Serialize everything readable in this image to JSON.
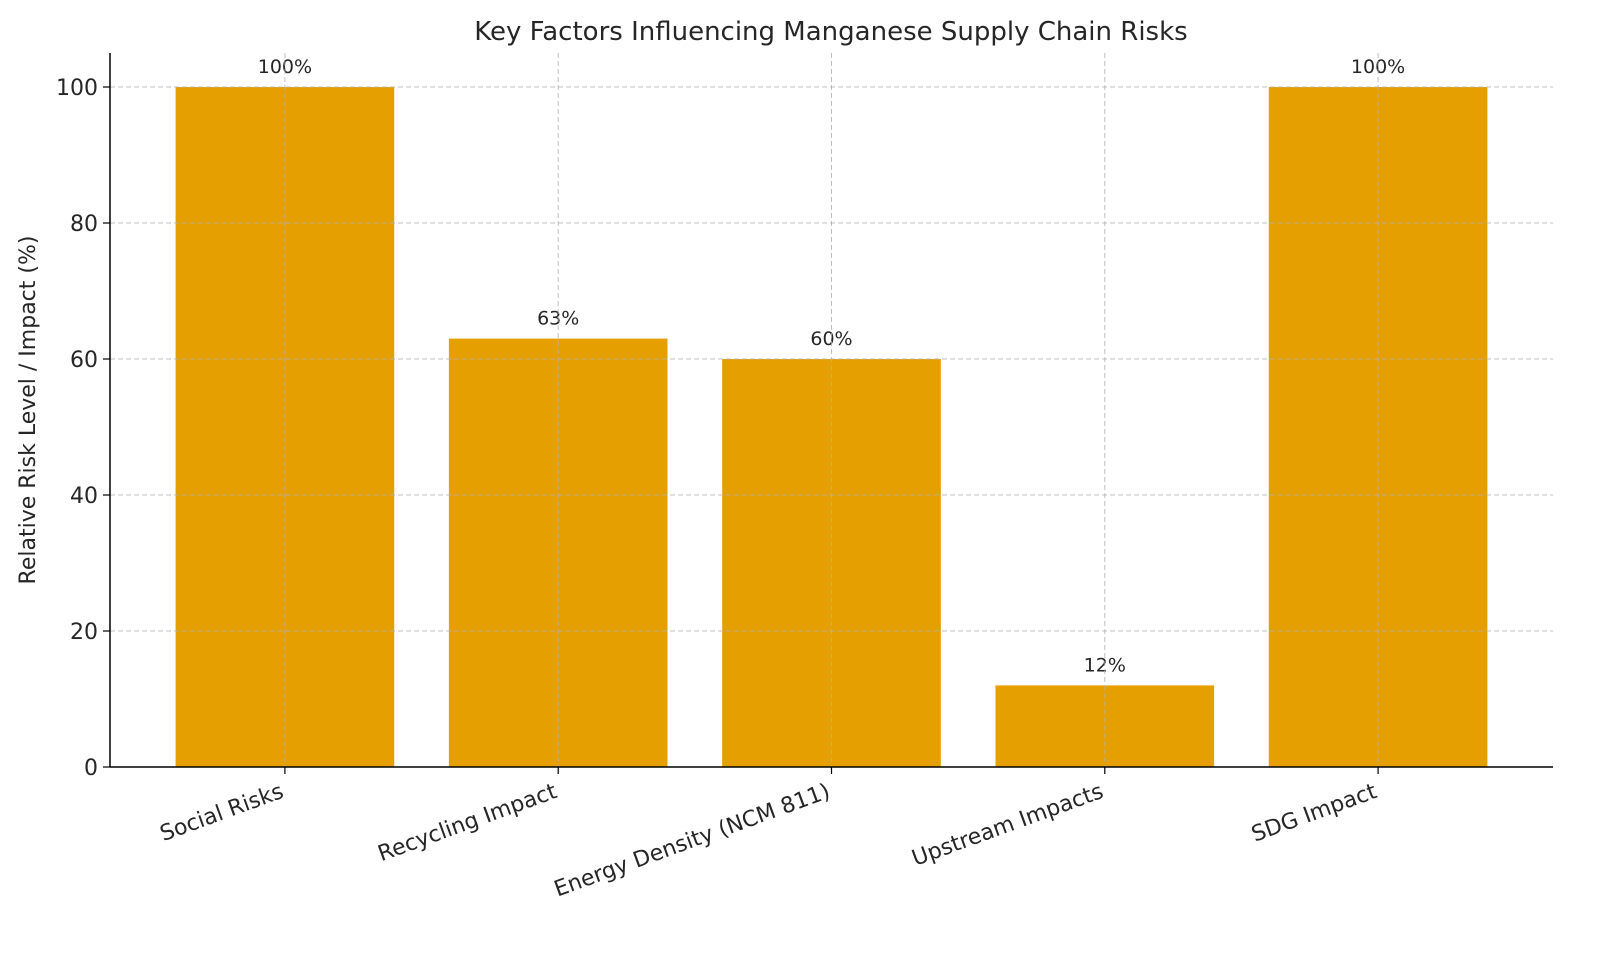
{
  "chart_data": {
    "type": "bar",
    "title": "Key Factors Influencing Manganese Supply Chain Risks",
    "xlabel": "",
    "ylabel": "Relative Risk Level / Impact (%)",
    "categories": [
      "Social Risks",
      "Recycling Impact",
      "Energy Density (NCM 811)",
      "Upstream Impacts",
      "SDG Impact"
    ],
    "values": [
      100,
      63,
      60,
      12,
      100
    ],
    "data_labels": [
      "100%",
      "63%",
      "60%",
      "12%",
      "100%"
    ],
    "ylim": [
      0,
      105
    ],
    "yticks": [
      0,
      20,
      40,
      60,
      80,
      100
    ],
    "grid": true,
    "bar_color": "#E69F00",
    "xtick_rotation_deg": 20
  }
}
